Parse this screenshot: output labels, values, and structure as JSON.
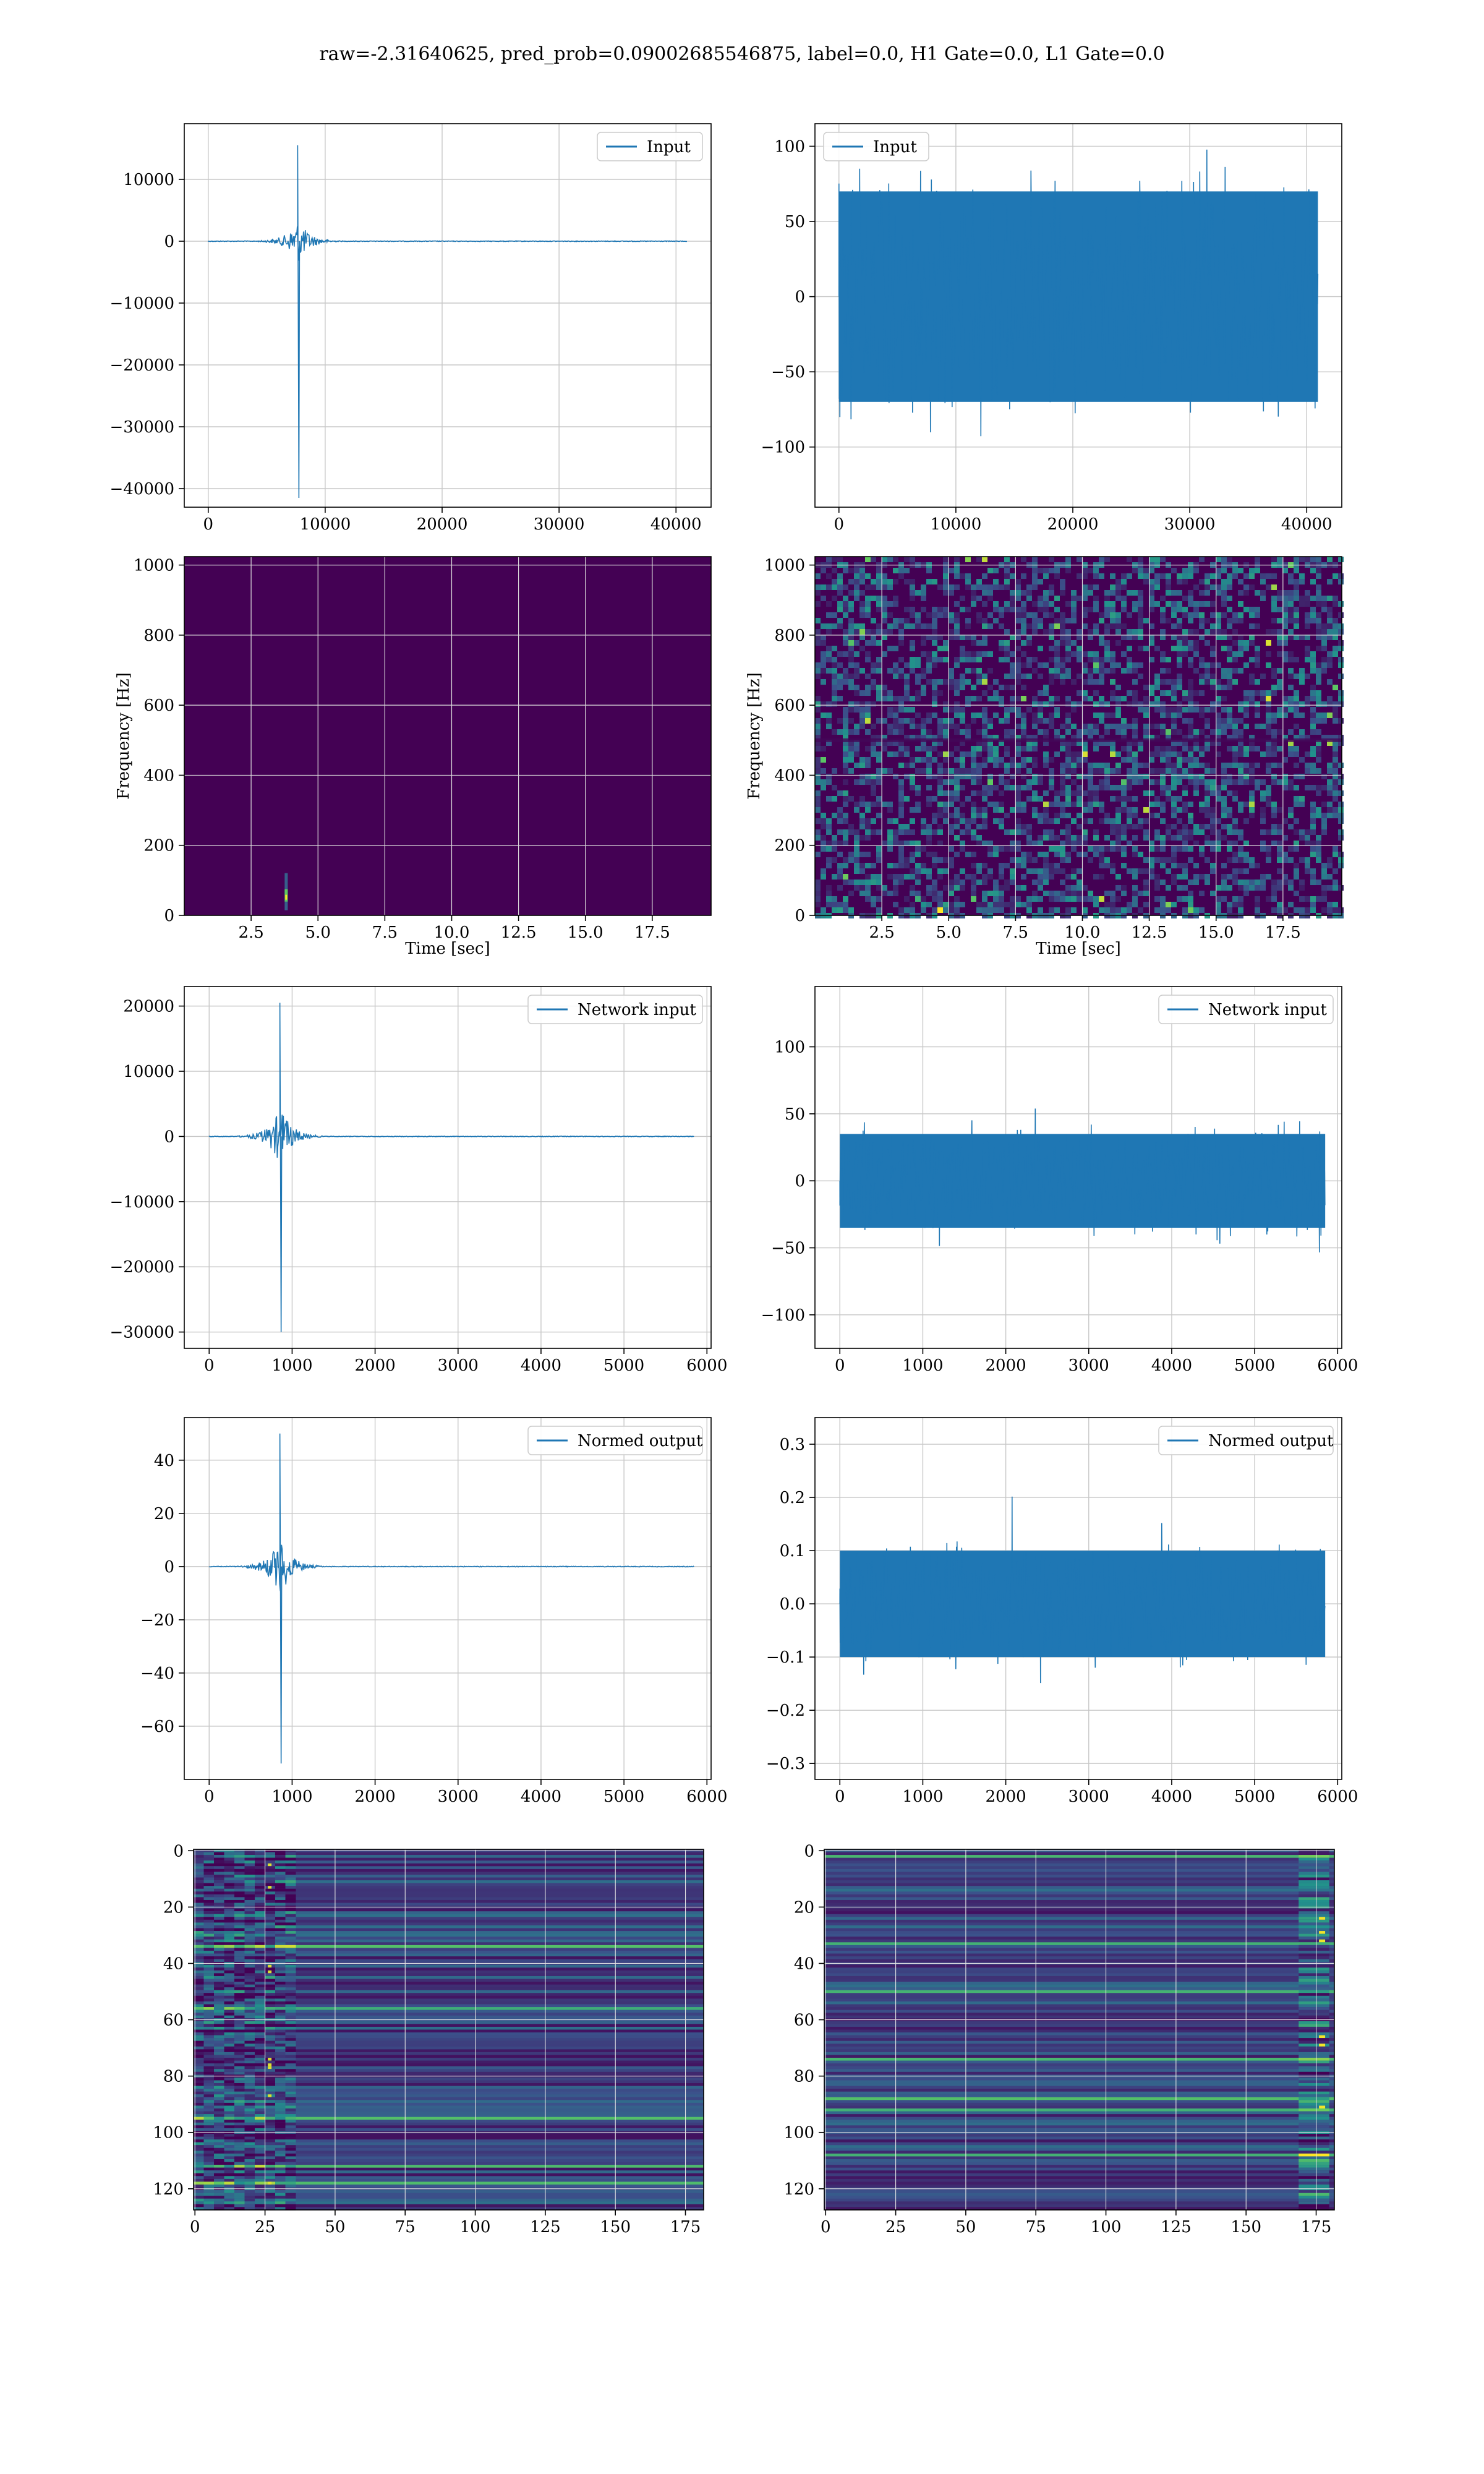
{
  "figure": {
    "title": "raw=-2.31640625, pred_prob=0.09002685546875, label=0.0, H1 Gate=0.0, L1 Gate=0.0"
  },
  "chart_data": [
    {
      "id": "p1",
      "type": "line",
      "signal": "burst",
      "legend": [
        "Input"
      ],
      "legend_position": "upper-right",
      "xlim": [
        -2050,
        43000
      ],
      "ylim": [
        -43000,
        19000
      ],
      "xticks": [
        "0",
        "10000",
        "20000",
        "30000",
        "40000"
      ],
      "xtick_values": [
        0,
        10000,
        20000,
        30000,
        40000
      ],
      "yticks": [
        "10000",
        "0",
        "−10000",
        "−20000",
        "−30000",
        "−40000"
      ],
      "ytick_values": [
        10000,
        0,
        -10000,
        -20000,
        -30000,
        -40000
      ],
      "burst_center": 7700,
      "burst_max": 15500,
      "burst_min": -41500,
      "x_max": 40960,
      "grid": true,
      "color": "#1f77b4"
    },
    {
      "id": "p2",
      "type": "line",
      "signal": "noise",
      "legend": [
        "Input"
      ],
      "legend_position": "upper-left",
      "xlim": [
        -2050,
        43000
      ],
      "ylim": [
        -140,
        115
      ],
      "xticks": [
        "0",
        "10000",
        "20000",
        "30000",
        "40000"
      ],
      "xtick_values": [
        0,
        10000,
        20000,
        30000,
        40000
      ],
      "yticks": [
        "100",
        "50",
        "0",
        "−50",
        "−100"
      ],
      "ytick_values": [
        100,
        50,
        0,
        -50,
        -100
      ],
      "band": [
        -70,
        70
      ],
      "x_max": 40960,
      "grid": true,
      "color": "#1f77b4"
    },
    {
      "id": "p3",
      "type": "heatmap",
      "signal": "spectrogram-burst",
      "xlim": [
        0,
        19.7
      ],
      "ylim": [
        0,
        1024
      ],
      "xticks": [
        "2.5",
        "5.0",
        "7.5",
        "10.0",
        "12.5",
        "15.0",
        "17.5"
      ],
      "xtick_values": [
        2.5,
        5,
        7.5,
        10,
        12.5,
        15,
        17.5
      ],
      "yticks": [
        "1000",
        "800",
        "600",
        "400",
        "200",
        "0"
      ],
      "ytick_values": [
        1000,
        800,
        600,
        400,
        200,
        0
      ],
      "xlabel": "Time [sec]",
      "ylabel": "Frequency [Hz]",
      "hotspot": {
        "t": 3.8,
        "f": 50
      },
      "colormap": "viridis",
      "grid": true
    },
    {
      "id": "p4",
      "type": "heatmap",
      "signal": "spectrogram-noise",
      "xlim": [
        0,
        19.7
      ],
      "ylim": [
        0,
        1024
      ],
      "xticks": [
        "2.5",
        "5.0",
        "7.5",
        "10.0",
        "12.5",
        "15.0",
        "17.5"
      ],
      "xtick_values": [
        2.5,
        5,
        7.5,
        10,
        12.5,
        15,
        17.5
      ],
      "yticks": [
        "1000",
        "800",
        "600",
        "400",
        "200",
        "0"
      ],
      "ytick_values": [
        1000,
        800,
        600,
        400,
        200,
        0
      ],
      "xlabel": "Time [sec]",
      "ylabel": "Frequency [Hz]",
      "colormap": "viridis",
      "grid": true
    },
    {
      "id": "p5",
      "type": "line",
      "signal": "burst",
      "legend": [
        "Network input"
      ],
      "legend_position": "upper-right",
      "xlim": [
        -300,
        6050
      ],
      "ylim": [
        -32500,
        23000
      ],
      "xticks": [
        "0",
        "1000",
        "2000",
        "3000",
        "4000",
        "5000",
        "6000"
      ],
      "xtick_values": [
        0,
        1000,
        2000,
        3000,
        4000,
        5000,
        6000
      ],
      "yticks": [
        "20000",
        "10000",
        "0",
        "−10000",
        "−20000",
        "−30000"
      ],
      "ytick_values": [
        20000,
        10000,
        0,
        -10000,
        -20000,
        -30000
      ],
      "burst_center": 860,
      "burst_max": 20500,
      "burst_min": -30000,
      "x_max": 5850,
      "grid": true,
      "color": "#1f77b4"
    },
    {
      "id": "p6",
      "type": "line",
      "signal": "noise",
      "legend": [
        "Network input"
      ],
      "legend_position": "upper-right",
      "xlim": [
        -300,
        6050
      ],
      "ylim": [
        -125,
        145
      ],
      "xticks": [
        "0",
        "1000",
        "2000",
        "3000",
        "4000",
        "5000",
        "6000"
      ],
      "xtick_values": [
        0,
        1000,
        2000,
        3000,
        4000,
        5000,
        6000
      ],
      "yticks": [
        "100",
        "50",
        "0",
        "−50",
        "−100"
      ],
      "ytick_values": [
        100,
        50,
        0,
        -50,
        -100
      ],
      "band": [
        -35,
        35
      ],
      "x_max": 5850,
      "grid": true,
      "color": "#1f77b4"
    },
    {
      "id": "p7",
      "type": "line",
      "signal": "burst",
      "legend": [
        "Normed output"
      ],
      "legend_position": "upper-right",
      "xlim": [
        -300,
        6050
      ],
      "ylim": [
        -80,
        56
      ],
      "xticks": [
        "0",
        "1000",
        "2000",
        "3000",
        "4000",
        "5000",
        "6000"
      ],
      "xtick_values": [
        0,
        1000,
        2000,
        3000,
        4000,
        5000,
        6000
      ],
      "yticks": [
        "40",
        "20",
        "0",
        "−20",
        "−40",
        "−60"
      ],
      "ytick_values": [
        40,
        20,
        0,
        -20,
        -40,
        -60
      ],
      "burst_center": 860,
      "burst_max": 50,
      "burst_min": -74,
      "x_max": 5850,
      "grid": true,
      "color": "#1f77b4"
    },
    {
      "id": "p8",
      "type": "line",
      "signal": "noise",
      "legend": [
        "Normed output"
      ],
      "legend_position": "upper-right",
      "xlim": [
        -300,
        6050
      ],
      "ylim": [
        -0.33,
        0.35
      ],
      "xticks": [
        "0",
        "1000",
        "2000",
        "3000",
        "4000",
        "5000",
        "6000"
      ],
      "xtick_values": [
        0,
        1000,
        2000,
        3000,
        4000,
        5000,
        6000
      ],
      "yticks": [
        "0.3",
        "0.2",
        "0.1",
        "0.0",
        "−0.1",
        "−0.2",
        "−0.3"
      ],
      "ytick_values": [
        0.3,
        0.2,
        0.1,
        0,
        -0.1,
        -0.2,
        -0.3
      ],
      "band": [
        -0.1,
        0.1
      ],
      "x_max": 5850,
      "grid": true,
      "color": "#1f77b4"
    },
    {
      "id": "p9",
      "type": "heatmap",
      "signal": "rows-left",
      "xlim": [
        -0.5,
        181.5
      ],
      "ylim": [
        127.5,
        -0.5
      ],
      "xticks": [
        "0",
        "25",
        "50",
        "75",
        "100",
        "125",
        "150",
        "175"
      ],
      "xtick_values": [
        0,
        25,
        50,
        75,
        100,
        125,
        150,
        175
      ],
      "yticks": [
        "0",
        "20",
        "40",
        "60",
        "80",
        "100",
        "120"
      ],
      "ytick_values": [
        0,
        20,
        40,
        60,
        80,
        100,
        120
      ],
      "rows": 128,
      "cols": 182,
      "bright_rows": [
        34,
        56,
        95,
        112,
        118
      ],
      "colormap": "viridis",
      "grid": true
    },
    {
      "id": "p10",
      "type": "heatmap",
      "signal": "rows-right",
      "xlim": [
        -0.5,
        181.5
      ],
      "ylim": [
        127.5,
        -0.5
      ],
      "xticks": [
        "0",
        "25",
        "50",
        "75",
        "100",
        "125",
        "150",
        "175"
      ],
      "xtick_values": [
        0,
        25,
        50,
        75,
        100,
        125,
        150,
        175
      ],
      "yticks": [
        "0",
        "20",
        "40",
        "60",
        "80",
        "100",
        "120"
      ],
      "ytick_values": [
        0,
        20,
        40,
        60,
        80,
        100,
        120
      ],
      "rows": 128,
      "cols": 182,
      "bright_rows": [
        2,
        33,
        50,
        74,
        88,
        92,
        108
      ],
      "colormap": "viridis",
      "grid": true
    }
  ]
}
